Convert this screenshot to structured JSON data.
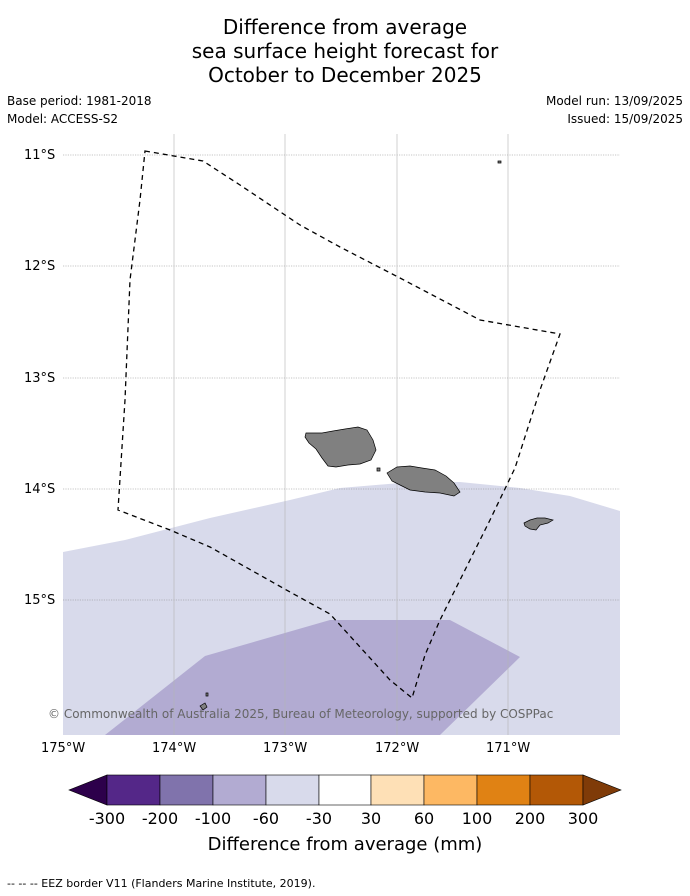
{
  "title": {
    "line1": "Difference from average",
    "line2": "sea surface height forecast for",
    "line3": "October to December 2025"
  },
  "meta": {
    "base_period": "Base period: 1981-2018",
    "model": "Model: ACCESS-S2",
    "model_run": "Model run: 13/09/2025",
    "issued": "Issued: 15/09/2025"
  },
  "map": {
    "lat_labels": [
      "11°S",
      "12°S",
      "13°S",
      "14°S",
      "15°S"
    ],
    "lon_labels": [
      "175°W",
      "174°W",
      "173°W",
      "172°W",
      "171°W"
    ],
    "land_color": "#808080",
    "eez_color": "#000000"
  },
  "colorbar": {
    "colors": [
      "#2d004b",
      "#542788",
      "#8073ac",
      "#b2abd2",
      "#d8daeb",
      "#ffffff",
      "#fee0b6",
      "#fdb863",
      "#e08214",
      "#b35806",
      "#7f3b08"
    ],
    "ticks": [
      "-300",
      "-200",
      "-100",
      "-60",
      "-30",
      "30",
      "60",
      "100",
      "200",
      "300"
    ],
    "label": "Difference from average (mm)"
  },
  "copyright": "© Commonwealth of Australia 2025, Bureau of Meteorology, supported by COSPPac",
  "footer": "--  --  -- EEZ border V11 (Flanders Marine Institute, 2019)."
}
